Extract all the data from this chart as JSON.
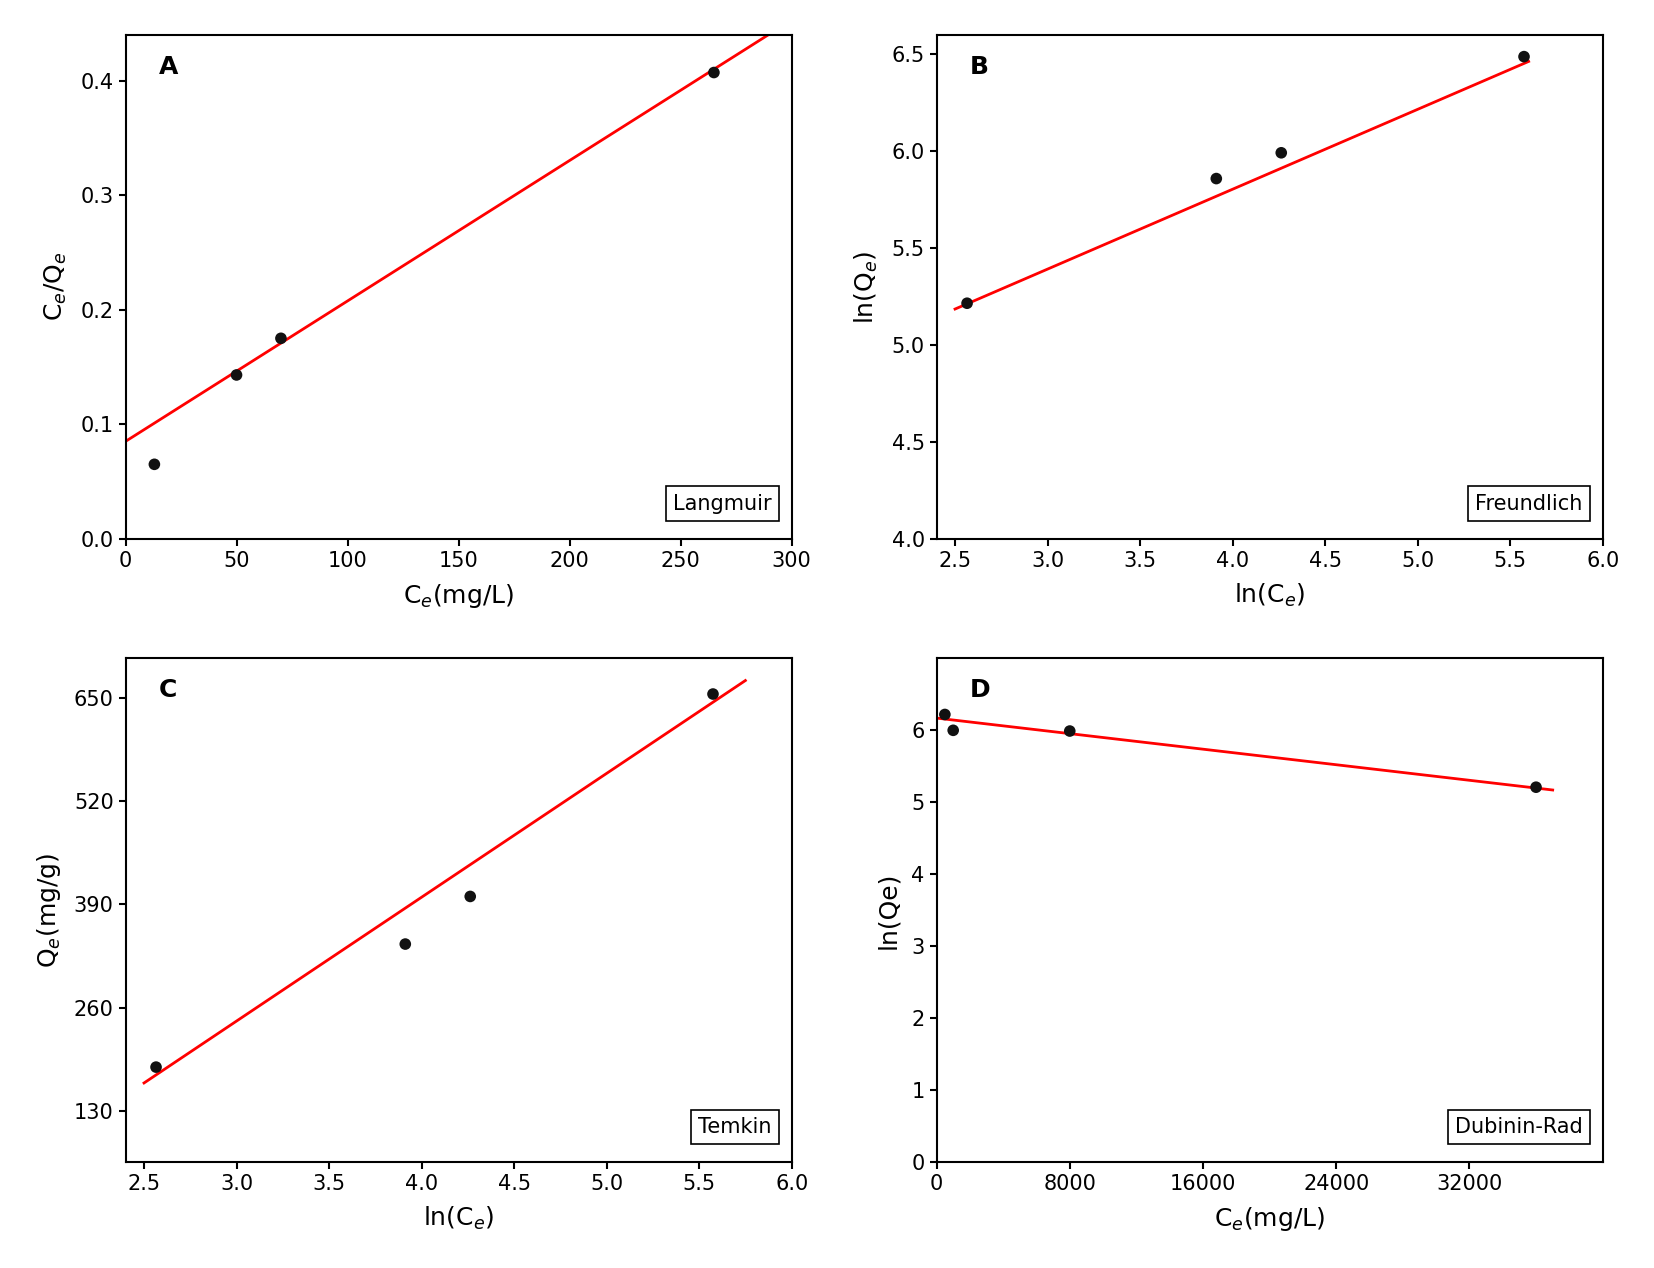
{
  "panel_A": {
    "label": "A",
    "xlabel": "C$_e$(mg/L)",
    "ylabel": "C$_e$/Q$_e$",
    "scatter_x": [
      13,
      50,
      70,
      265
    ],
    "scatter_y": [
      0.065,
      0.143,
      0.175,
      0.407
    ],
    "line_x_start": 0,
    "line_x_end": 300,
    "line_slope": 0.001226,
    "line_intercept": 0.085,
    "xlim": [
      0,
      300
    ],
    "ylim": [
      0.0,
      0.44
    ],
    "xticks": [
      0,
      50,
      100,
      150,
      200,
      250,
      300
    ],
    "yticks": [
      0.0,
      0.1,
      0.2,
      0.3,
      0.4
    ],
    "legend": "Langmuir"
  },
  "panel_B": {
    "label": "B",
    "xlabel": "ln(C$_e$)",
    "ylabel": "ln(Q$_e$)",
    "scatter_x": [
      2.565,
      3.912,
      4.263,
      5.575
    ],
    "scatter_y": [
      5.215,
      5.858,
      5.991,
      6.487
    ],
    "line_x_start": 2.5,
    "line_x_end": 5.6,
    "line_slope": 0.412,
    "line_intercept": 4.155,
    "xlim": [
      2.4,
      6.0
    ],
    "ylim": [
      4.0,
      6.6
    ],
    "xticks": [
      2.5,
      3.0,
      3.5,
      4.0,
      4.5,
      5.0,
      5.5,
      6.0
    ],
    "yticks": [
      4.0,
      4.5,
      5.0,
      5.5,
      6.0,
      6.5
    ],
    "legend": "Freundlich"
  },
  "panel_C": {
    "label": "C",
    "xlabel": "ln(C$_e$)",
    "ylabel": "Q$_e$(mg/g)",
    "scatter_x": [
      2.565,
      3.912,
      4.263,
      5.575
    ],
    "scatter_y": [
      185,
      340,
      400,
      655
    ],
    "line_x_start": 2.5,
    "line_x_end": 5.75,
    "line_slope": 156.0,
    "line_intercept": -225.0,
    "xlim": [
      2.4,
      6.0
    ],
    "ylim": [
      65,
      700
    ],
    "xticks": [
      2.5,
      3.0,
      3.5,
      4.0,
      4.5,
      5.0,
      5.5,
      6.0
    ],
    "yticks": [
      130,
      260,
      390,
      520,
      650
    ],
    "legend": "Temkin"
  },
  "panel_D": {
    "label": "D",
    "xlabel": "C$_e$(mg/L)",
    "ylabel": "ln(Qe)",
    "scatter_x": [
      500,
      1000,
      8000,
      36000
    ],
    "scatter_y": [
      6.22,
      6.0,
      5.99,
      5.21
    ],
    "line_x_start": 0,
    "line_x_end": 37000,
    "line_slope": -2.7e-05,
    "line_intercept": 6.17,
    "xlim": [
      0,
      40000
    ],
    "ylim": [
      0,
      7.0
    ],
    "xticks": [
      0,
      8000,
      16000,
      24000,
      32000
    ],
    "yticks": [
      0,
      1,
      2,
      3,
      4,
      5,
      6
    ],
    "legend": "Dubinin-Rad"
  },
  "line_color": "#FF0000",
  "scatter_color": "#111111",
  "scatter_size": 70,
  "line_width": 2.0,
  "label_fontsize": 18,
  "tick_fontsize": 15,
  "legend_fontsize": 15,
  "panel_label_fontsize": 18,
  "axes_linewidth": 1.5
}
